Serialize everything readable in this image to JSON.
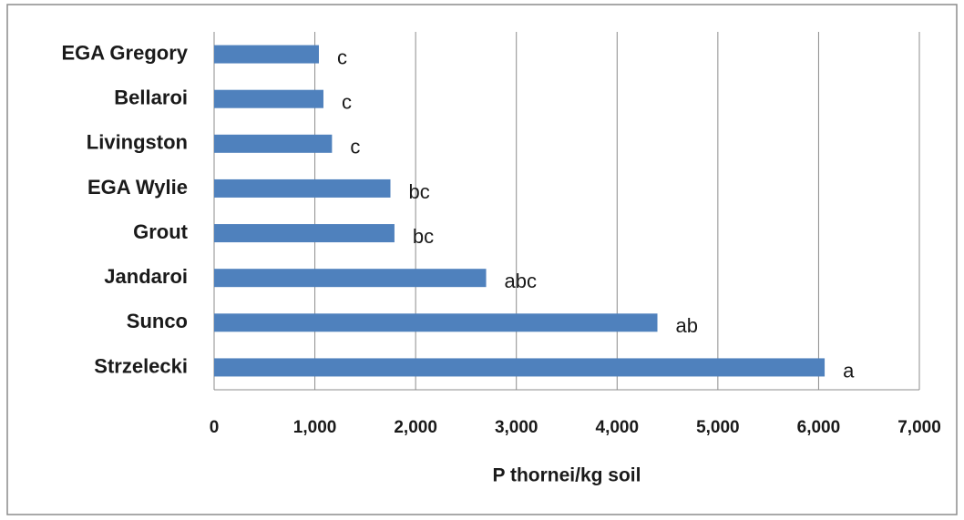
{
  "chart_data": {
    "type": "bar",
    "orientation": "horizontal",
    "x_label": "P thornei/kg soil",
    "categories": [
      "EGA Gregory",
      "Bellaroi",
      "Livingston",
      "EGA Wylie",
      "Grout",
      "Jandaroi",
      "Sunco",
      "Strzelecki"
    ],
    "values": [
      1040,
      1085,
      1170,
      1750,
      1790,
      2700,
      4400,
      6060
    ],
    "significance_labels": [
      "c",
      "c",
      "c",
      "bc",
      "bc",
      "abc",
      "ab",
      "a"
    ],
    "color": "#4f81bd",
    "xlim": [
      0,
      7000
    ],
    "xticks": [
      0,
      {
        "value": 1000,
        "label": "1,000"
      },
      {
        "value": 2000,
        "label": "2,000"
      },
      {
        "value": 3000,
        "label": "3,000"
      },
      {
        "value": 4000,
        "label": "4,000"
      },
      {
        "value": 5000,
        "label": "5,000"
      },
      {
        "value": 6000,
        "label": "6,000"
      },
      {
        "value": 7000,
        "label": "7,000"
      }
    ],
    "grid": true
  }
}
